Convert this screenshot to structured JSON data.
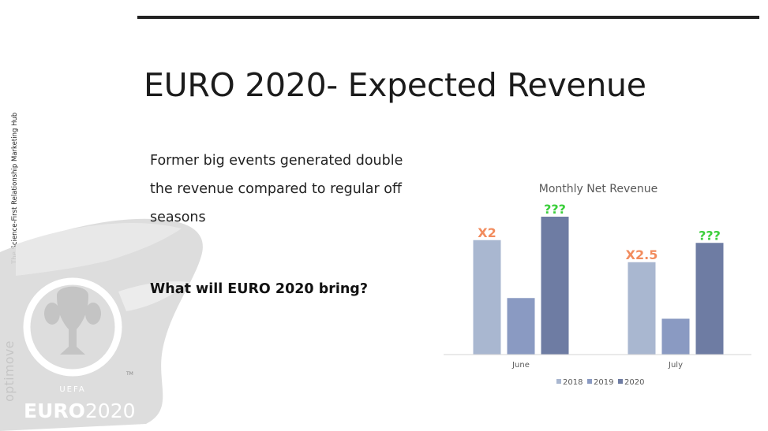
{
  "slide": {
    "title": "EURO 2020- Expected Revenue",
    "body_text": "Former big events generated double the revenue compared to regular off seasons",
    "question": "What will EURO 2020 bring?"
  },
  "sidebar": {
    "caption": "The Science-First Relationship Marketing Hub",
    "logo_text": "optimove"
  },
  "brand_art": {
    "uefa_label": "UEFA",
    "tm_mark": "TM",
    "euro_label_left": "EURO",
    "euro_label_right": "2020"
  },
  "chart_data": {
    "type": "bar",
    "title": "Monthly Net Revenue",
    "categories": [
      "June",
      "July"
    ],
    "series": [
      {
        "name": "2018",
        "values": [
          83,
          67
        ],
        "color": "#a9b7d0"
      },
      {
        "name": "2019",
        "values": [
          41,
          26
        ],
        "color": "#8a9ac2"
      },
      {
        "name": "2020",
        "values": [
          100,
          81
        ],
        "color": "#6e7ca3"
      }
    ],
    "annotations": [
      {
        "category": "June",
        "series": "2018",
        "text": "X2",
        "color": "#f28c5e"
      },
      {
        "category": "June",
        "series": "2020",
        "text": "???",
        "color": "#3ccf3c"
      },
      {
        "category": "July",
        "series": "2018",
        "text": "X2.5",
        "color": "#f28c5e"
      },
      {
        "category": "July",
        "series": "2020",
        "text": "???",
        "color": "#3ccf3c"
      }
    ],
    "ylim": [
      0,
      100
    ],
    "grid": false,
    "legend_position": "bottom"
  }
}
